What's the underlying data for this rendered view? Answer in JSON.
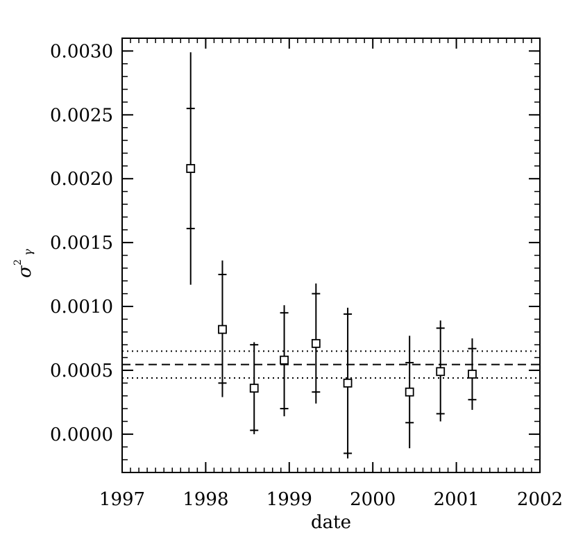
{
  "chart_data": {
    "type": "scatter",
    "xlabel": "date",
    "ylabel": "σ²γ",
    "ylabel_main": "σ",
    "ylabel_sup": "2",
    "ylabel_sub": "γ",
    "xlim": [
      1997,
      2002
    ],
    "ylim": [
      -0.0003,
      0.0031
    ],
    "x_ticks": [
      1997,
      1998,
      1999,
      2000,
      2001,
      2002
    ],
    "x_tick_labels": [
      "1997",
      "1998",
      "1999",
      "2000",
      "2001",
      "2002"
    ],
    "y_ticks": [
      0.0,
      0.0005,
      0.001,
      0.0015,
      0.002,
      0.0025,
      0.003
    ],
    "y_tick_labels": [
      "0.0000",
      "0.0005",
      "0.0010",
      "0.0015",
      "0.0020",
      "0.0025",
      "0.0030"
    ],
    "x_minor_step": 0.1,
    "y_minor_step": 0.0001,
    "grid": false,
    "points": [
      {
        "x": 1997.82,
        "y": 0.00208,
        "inner_low": 0.00161,
        "inner_high": 0.00255,
        "outer_low": 0.00117,
        "outer_high": 0.00299
      },
      {
        "x": 1998.2,
        "y": 0.00082,
        "inner_low": 0.0004,
        "inner_high": 0.00125,
        "outer_low": 0.00029,
        "outer_high": 0.00136
      },
      {
        "x": 1998.58,
        "y": 0.00036,
        "inner_low": 3e-05,
        "inner_high": 0.0007,
        "outer_low": 0.0,
        "outer_high": 0.00072
      },
      {
        "x": 1998.94,
        "y": 0.00058,
        "inner_low": 0.0002,
        "inner_high": 0.00095,
        "outer_low": 0.00014,
        "outer_high": 0.00101
      },
      {
        "x": 1999.32,
        "y": 0.00071,
        "inner_low": 0.00033,
        "inner_high": 0.0011,
        "outer_low": 0.00024,
        "outer_high": 0.00118
      },
      {
        "x": 1999.7,
        "y": 0.0004,
        "inner_low": -0.00015,
        "inner_high": 0.00094,
        "outer_low": -0.00019,
        "outer_high": 0.00099
      },
      {
        "x": 2000.44,
        "y": 0.00033,
        "inner_low": 9e-05,
        "inner_high": 0.00056,
        "outer_low": -0.00011,
        "outer_high": 0.00077
      },
      {
        "x": 2000.81,
        "y": 0.00049,
        "inner_low": 0.00016,
        "inner_high": 0.00083,
        "outer_low": 0.0001,
        "outer_high": 0.00089
      },
      {
        "x": 2001.19,
        "y": 0.00047,
        "inner_low": 0.00027,
        "inner_high": 0.00067,
        "outer_low": 0.00019,
        "outer_high": 0.00075
      }
    ],
    "reference_lines": [
      {
        "kind": "mean",
        "y": 0.000545,
        "style": "dashed"
      },
      {
        "kind": "upper",
        "y": 0.00065,
        "style": "dotted"
      },
      {
        "kind": "lower",
        "y": 0.00044,
        "style": "dotted"
      }
    ]
  }
}
